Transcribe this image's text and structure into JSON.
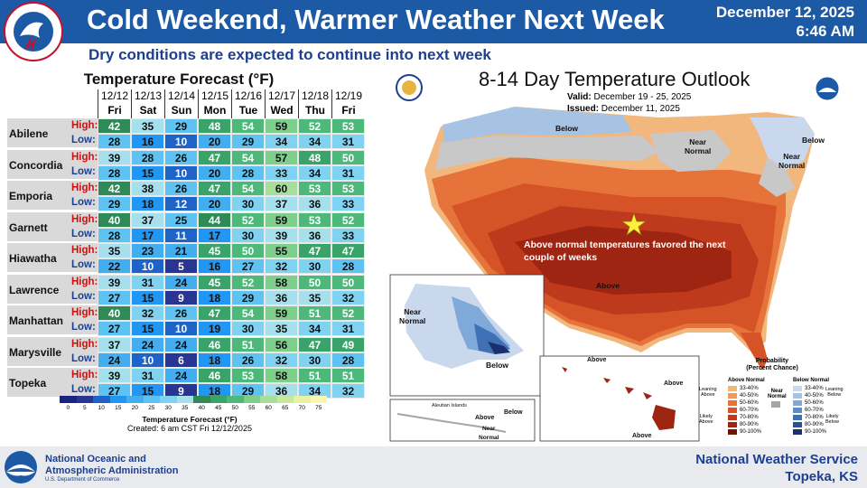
{
  "header": {
    "title": "Cold Weekend, Warmer Weather Next Week",
    "date": "December 12, 2025",
    "time": "6:46 AM",
    "subtitle": "Dry conditions are expected to continue into next week"
  },
  "forecast_table": {
    "title": "Temperature Forecast (°F)",
    "high_label": "High:",
    "low_label": "Low:",
    "dates": [
      "12/12",
      "12/13",
      "12/14",
      "12/15",
      "12/16",
      "12/17",
      "12/18",
      "12/19"
    ],
    "days": [
      "Fri",
      "Sat",
      "Sun",
      "Mon",
      "Tue",
      "Wed",
      "Thu",
      "Fri"
    ],
    "rows": [
      {
        "city": "Abilene",
        "high": [
          42,
          35,
          29,
          48,
          54,
          59,
          52,
          53
        ],
        "low": [
          28,
          16,
          10,
          20,
          29,
          34,
          34,
          31
        ]
      },
      {
        "city": "Concordia",
        "high": [
          39,
          28,
          26,
          47,
          54,
          57,
          48,
          50
        ],
        "low": [
          28,
          15,
          10,
          20,
          28,
          33,
          34,
          31
        ]
      },
      {
        "city": "Emporia",
        "high": [
          42,
          38,
          26,
          47,
          54,
          60,
          53,
          53
        ],
        "low": [
          29,
          18,
          12,
          20,
          30,
          37,
          36,
          33
        ]
      },
      {
        "city": "Garnett",
        "high": [
          40,
          37,
          25,
          44,
          52,
          59,
          53,
          52
        ],
        "low": [
          28,
          17,
          11,
          17,
          30,
          39,
          36,
          33
        ]
      },
      {
        "city": "Hiawatha",
        "high": [
          35,
          23,
          21,
          45,
          50,
          55,
          47,
          47
        ],
        "low": [
          22,
          10,
          5,
          16,
          27,
          32,
          30,
          28
        ]
      },
      {
        "city": "Lawrence",
        "high": [
          39,
          31,
          24,
          45,
          52,
          58,
          50,
          50
        ],
        "low": [
          27,
          15,
          9,
          18,
          29,
          36,
          35,
          32
        ]
      },
      {
        "city": "Manhattan",
        "high": [
          40,
          32,
          26,
          47,
          54,
          59,
          51,
          52
        ],
        "low": [
          27,
          15,
          10,
          19,
          30,
          35,
          34,
          31
        ]
      },
      {
        "city": "Marysville",
        "high": [
          37,
          24,
          24,
          46,
          51,
          56,
          47,
          49
        ],
        "low": [
          24,
          10,
          6,
          18,
          26,
          32,
          30,
          28
        ]
      },
      {
        "city": "Topeka",
        "high": [
          39,
          31,
          24,
          46,
          53,
          58,
          51,
          51
        ],
        "low": [
          27,
          15,
          9,
          18,
          29,
          36,
          34,
          32
        ]
      }
    ],
    "colorbar_ticks": [
      "0",
      "5",
      "10",
      "15",
      "20",
      "25",
      "30",
      "35",
      "40",
      "45",
      "50",
      "55",
      "60",
      "65",
      "70",
      "75"
    ],
    "colorbar_title": "Temperature Forecast (°F)",
    "created": "Created: 6 am CST Fri 12/12/2025"
  },
  "outlook_map": {
    "title": "8-14 Day Temperature Outlook",
    "valid_label": "Valid:",
    "valid": "December 19 - 25, 2025",
    "issued_label": "Issued:",
    "issued": "December 11, 2025",
    "favored_text": "Above normal temperatures favored the next couple of weeks",
    "labels": {
      "below_north": "Below",
      "near_normal_gl": "Near\nNormal",
      "below_ne": "Below",
      "near_normal_ne": "Near\nNormal",
      "above_south": "Above",
      "near_normal_ak": "Near\nNormal",
      "below_ak": "Below",
      "above_hi": "Above",
      "above_hi2": "Above",
      "above_hi3": "Above",
      "aleutian": "Aleutian Islands",
      "above_aleut": "Above",
      "below_aleut": "Below",
      "near_normal_aleut": "Near\nNormal"
    },
    "legend": {
      "title": "Probability\n(Percent Chance)",
      "above_normal": "Above Normal",
      "near_normal": "Near\nNormal",
      "below_normal": "Below Normal",
      "above_bins": [
        "33-40%",
        "40-50%",
        "50-60%",
        "60-70%",
        "70-80%",
        "80-90%",
        "90-100%"
      ],
      "below_bins": [
        "33-40%",
        "40-50%",
        "50-60%",
        "60-70%",
        "70-80%",
        "80-90%",
        "90-100%"
      ],
      "leaning_above": "Leaning\nAbove",
      "likely_above": "Likely\nAbove",
      "leaning_below": "Leaning\nBelow",
      "likely_below": "Likely\nBelow",
      "above_colors": [
        "#f2b77c",
        "#ef9a5b",
        "#e5733a",
        "#d55327",
        "#bf3a1c",
        "#9e2512",
        "#6e1407"
      ],
      "below_colors": [
        "#c9d8ec",
        "#a7c3e3",
        "#7ea9d8",
        "#5a8fcc",
        "#3f70b5",
        "#2b4f97",
        "#1d2e6e"
      ],
      "near_color": "#a6a6a6"
    }
  },
  "footer": {
    "noaa_line1": "National Oceanic and",
    "noaa_line2": "Atmospheric Administration",
    "noaa_dept": "U.S. Department of Commerce",
    "nws_line1": "National Weather Service",
    "nws_line2": "Topeka, KS"
  }
}
